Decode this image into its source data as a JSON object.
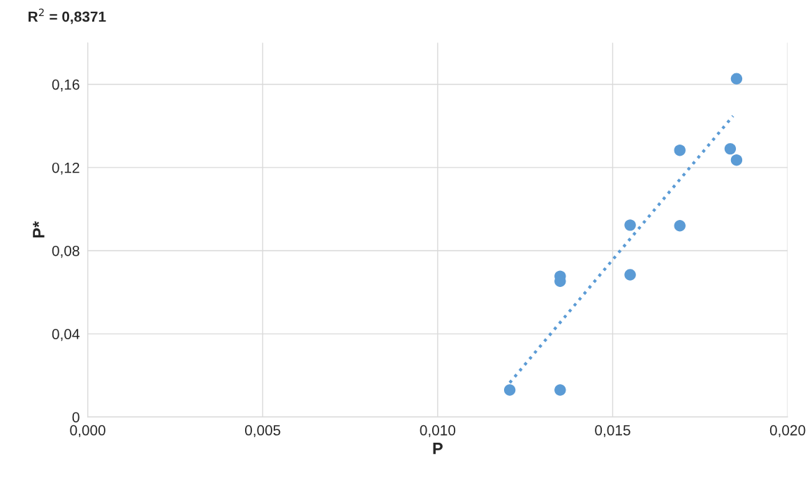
{
  "chart_data": {
    "type": "scatter",
    "xlabel": "P",
    "ylabel": "P*",
    "annotations": [
      "R$^{2}$ = 0,8371"
    ],
    "series": [
      {
        "color": "#5b9bd5",
        "marker": "circle",
        "x": [
          0.01206,
          0.0135,
          0.0135,
          0.0135,
          0.0155,
          0.0155,
          0.01692,
          0.01692,
          0.01836,
          0.01854,
          0.01854
        ],
        "values": [
          0.013,
          0.013,
          0.0677,
          0.0653,
          0.0923,
          0.0684,
          0.1283,
          0.092,
          0.129,
          0.1627,
          0.1236
        ]
      },
      {
        "type": "line",
        "color": "#5b9bd5",
        "line_style": "dotted",
        "marker": "none",
        "x": [
          0.01206,
          0.01844
        ],
        "values": [
          0.0165,
          0.1448
        ]
      }
    ],
    "xlim": [
      0,
      0.02
    ],
    "ylim": [
      0,
      0.18
    ],
    "xticks": [
      {
        "value": 0,
        "label": "0,000"
      },
      {
        "value": 0.005,
        "label": "0,005"
      },
      {
        "value": 0.01,
        "label": "0,010"
      },
      {
        "value": 0.015,
        "label": "0,015"
      },
      {
        "value": 0.02,
        "label": "0,020"
      }
    ],
    "yticks": [
      0,
      {
        "value": 0.04,
        "label": "0,04"
      },
      {
        "value": 0.08,
        "label": "0,08"
      },
      {
        "value": 0.12,
        "label": "0,12"
      },
      {
        "value": 0.16,
        "label": "0,16"
      }
    ],
    "grid": true,
    "legend": false
  }
}
